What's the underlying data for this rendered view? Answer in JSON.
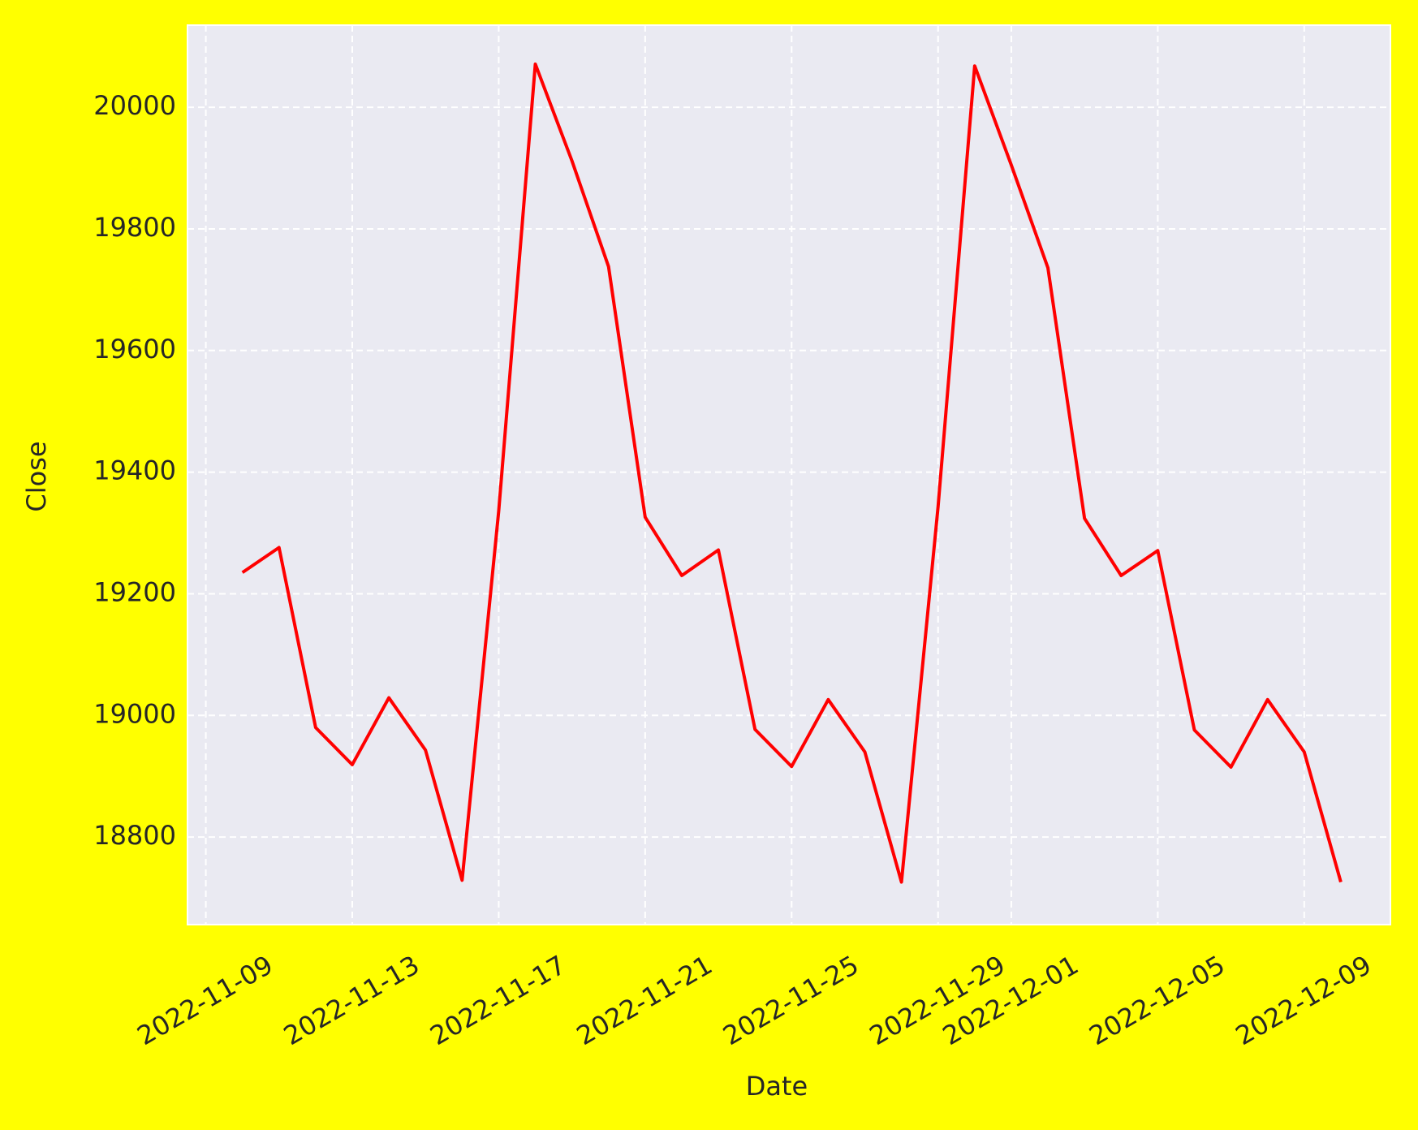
{
  "chart_data": {
    "type": "line",
    "x_label": "Date",
    "y_label": "Close",
    "x": [
      "2022-11-10",
      "2022-11-11",
      "2022-11-12",
      "2022-11-13",
      "2022-11-14",
      "2022-11-15",
      "2022-11-16",
      "2022-11-17",
      "2022-11-18",
      "2022-11-19",
      "2022-11-20",
      "2022-11-21",
      "2022-11-22",
      "2022-11-23",
      "2022-11-24",
      "2022-11-25",
      "2022-11-26",
      "2022-11-27",
      "2022-11-28",
      "2022-11-29",
      "2022-11-30",
      "2022-12-01",
      "2022-12-02",
      "2022-12-03",
      "2022-12-04",
      "2022-12-05",
      "2022-12-06",
      "2022-12-07",
      "2022-12-08",
      "2022-12-09",
      "2022-12-10"
    ],
    "series": [
      {
        "name": "Close",
        "color": "#ff0000",
        "values": [
          19235,
          19276,
          18980,
          18919,
          19029,
          18943,
          18729,
          19336,
          20071,
          19912,
          19738,
          19326,
          19230,
          19272,
          18977,
          18916,
          19026,
          18940,
          18726,
          19343,
          20068,
          19905,
          19736,
          19324,
          19230,
          19271,
          18976,
          18915,
          19026,
          18940,
          18726
        ]
      }
    ],
    "xlim": [
      "2022-11-08T12:00",
      "2022-12-11T08:30"
    ],
    "xticks": [
      "2022-11-09",
      "2022-11-13",
      "2022-11-17",
      "2022-11-21",
      "2022-11-25",
      "2022-11-29",
      "2022-12-01",
      "2022-12-05",
      "2022-12-09"
    ],
    "ylim": [
      18656,
      20135
    ],
    "yticks": [
      18800,
      19000,
      19200,
      19400,
      19600,
      19800,
      20000
    ],
    "grid": true
  }
}
